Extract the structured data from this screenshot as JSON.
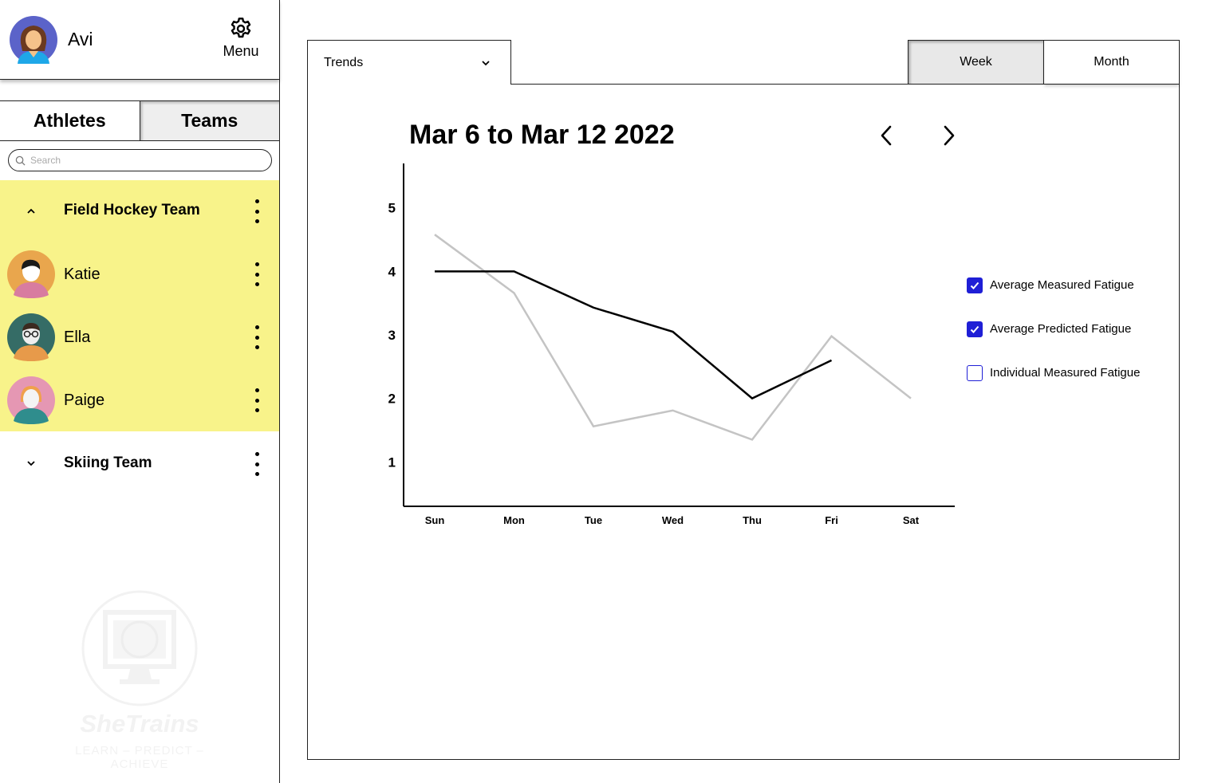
{
  "user": {
    "name": "Avi",
    "avatar_icon": "female-avatar-icon"
  },
  "menu": {
    "label": "Menu",
    "icon": "gear-icon"
  },
  "tabs": {
    "athletes": "Athletes",
    "teams": "Teams"
  },
  "search": {
    "placeholder": "Search",
    "value": ""
  },
  "teams": [
    {
      "name": "Field Hockey Team",
      "expanded": true,
      "highlight_color": "#f8f38a",
      "athletes": [
        {
          "name": "Katie",
          "avatar_icon": "katie-avatar-icon"
        },
        {
          "name": "Ella",
          "avatar_icon": "ella-avatar-icon"
        },
        {
          "name": "Paige",
          "avatar_icon": "paige-avatar-icon"
        }
      ]
    },
    {
      "name": "Skiing Team",
      "expanded": false,
      "athletes": []
    }
  ],
  "brand": {
    "name": "SheTrains",
    "tagline": "LEARN – PREDICT – ACHIEVE"
  },
  "view_select": {
    "selected": "Trends"
  },
  "range_toggle": {
    "week": "Week",
    "month": "Month",
    "active": "Week"
  },
  "date_range": {
    "title": "Mar 6 to Mar 12 2022"
  },
  "legend": [
    {
      "label": "Average Measured Fatigue",
      "checked": true
    },
    {
      "label": "Average Predicted Fatigue",
      "checked": true
    },
    {
      "label": "Individual Measured Fatigue",
      "checked": false
    }
  ],
  "chart_data": {
    "type": "line",
    "categories": [
      "Sun",
      "Mon",
      "Tue",
      "Wed",
      "Thu",
      "Fri",
      "Sat"
    ],
    "yticks": [
      1,
      2,
      3,
      4,
      5
    ],
    "ylim": [
      0.3,
      5.7
    ],
    "series": [
      {
        "name": "Average Measured Fatigue",
        "color": "#000000",
        "values": [
          4.0,
          4.0,
          3.43,
          3.05,
          2.0,
          2.6,
          null
        ]
      },
      {
        "name": "Average Predicted Fatigue",
        "color": "#c4c4c4",
        "values": [
          4.58,
          3.66,
          1.56,
          1.81,
          1.35,
          2.98,
          2.0
        ]
      }
    ],
    "accent_color": "#1f1fd6"
  }
}
